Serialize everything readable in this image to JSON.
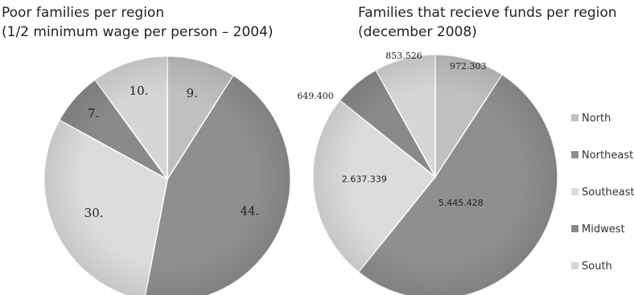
{
  "chart_data": [
    {
      "type": "pie",
      "title_line1": "Poor families per region",
      "title_line2": "(1/2 minimum wage per person – 2004)",
      "categories": [
        "North",
        "Northeast",
        "Southeast",
        "Midwest",
        "South"
      ],
      "values": [
        9,
        44,
        30,
        7,
        10
      ],
      "labels": [
        "9.",
        "44.",
        "30.",
        "7.",
        "10."
      ]
    },
    {
      "type": "pie",
      "title_line1": "Families that recieve funds per region",
      "title_line2": "(december 2008)",
      "categories": [
        "North",
        "Northeast",
        "Southeast",
        "Midwest",
        "South"
      ],
      "values": [
        972303,
        5445428,
        2637339,
        649400,
        853526
      ],
      "labels": [
        "972.303",
        "5.445.428",
        "2.637.339",
        "649.400",
        "853.526"
      ],
      "legend_position": "right"
    }
  ],
  "colors": {
    "North": "#c0c0c0",
    "Northeast": "#8f8f8f",
    "Southeast": "#dcdcdc",
    "Midwest": "#8a8a8a",
    "South": "#d6d6d6"
  }
}
